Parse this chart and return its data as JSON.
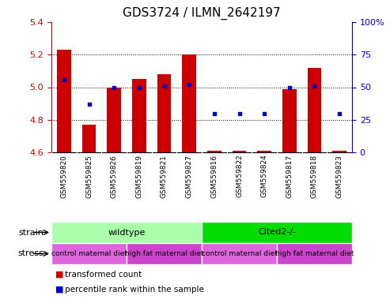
{
  "title": "GDS3724 / ILMN_2642197",
  "samples": [
    "GSM559820",
    "GSM559825",
    "GSM559826",
    "GSM559819",
    "GSM559821",
    "GSM559827",
    "GSM559816",
    "GSM559822",
    "GSM559824",
    "GSM559817",
    "GSM559818",
    "GSM559823"
  ],
  "transformed_counts": [
    5.23,
    4.77,
    5.0,
    5.05,
    5.08,
    5.2,
    4.61,
    4.61,
    4.61,
    4.99,
    5.12,
    4.61
  ],
  "percentile_ranks": [
    56,
    37,
    50,
    50,
    51,
    52,
    30,
    30,
    30,
    50,
    51,
    30
  ],
  "baseline": 4.6,
  "ylim_left": [
    4.6,
    5.4
  ],
  "ylim_right": [
    0,
    100
  ],
  "yticks_left": [
    4.6,
    4.8,
    5.0,
    5.2,
    5.4
  ],
  "yticks_right": [
    0,
    25,
    50,
    75,
    100
  ],
  "ytick_labels_right": [
    "0",
    "25",
    "50",
    "75",
    "100%"
  ],
  "bar_color": "#cc0000",
  "dot_color": "#0000cc",
  "bar_width": 0.55,
  "strain_groups": [
    {
      "label": "wildtype",
      "start": 0,
      "end": 5,
      "color": "#aaffaa"
    },
    {
      "label": "Cited2-/-",
      "start": 6,
      "end": 11,
      "color": "#00dd00"
    }
  ],
  "stress_groups": [
    {
      "label": "control maternal diet",
      "start": 0,
      "end": 2,
      "color": "#dd66dd"
    },
    {
      "label": "high fat maternal diet",
      "start": 3,
      "end": 5,
      "color": "#cc44cc"
    },
    {
      "label": "control maternal diet",
      "start": 6,
      "end": 8,
      "color": "#dd66dd"
    },
    {
      "label": "high fat maternal diet",
      "start": 9,
      "end": 11,
      "color": "#cc44cc"
    }
  ],
  "legend_items": [
    {
      "label": "transformed count",
      "color": "#cc0000"
    },
    {
      "label": "percentile rank within the sample",
      "color": "#0000cc"
    }
  ],
  "strain_label": "strain",
  "stress_label": "stress",
  "left_axis_color": "#cc0000",
  "right_axis_color": "#0000cc",
  "grid_color": "black",
  "sample_band_color": "#c8c8c8",
  "title_fontsize": 11
}
